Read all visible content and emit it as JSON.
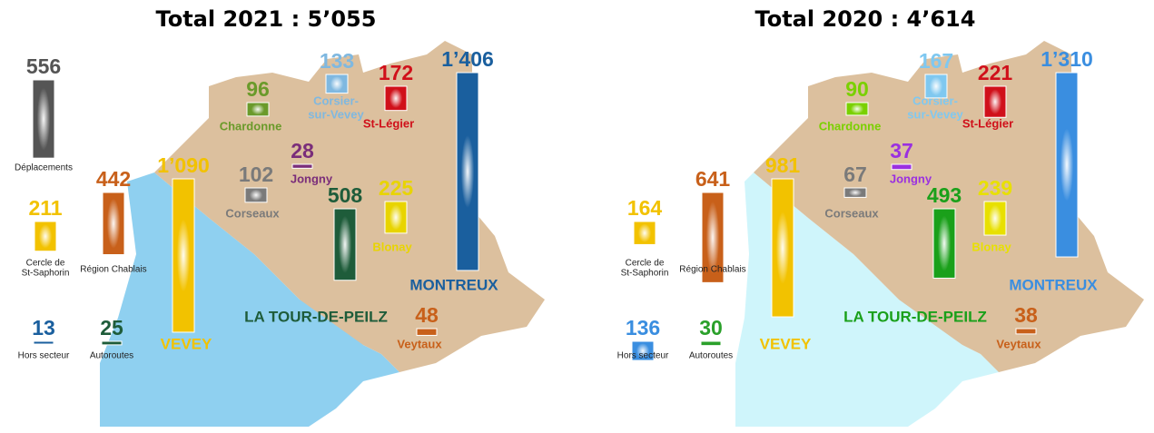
{
  "panels": [
    {
      "title": "Total 2021 : 5’055",
      "items": [
        {
          "name": "Déplacements",
          "value": 556,
          "value_label": "556",
          "color": "#555555"
        },
        {
          "name": [
            "Cercle de",
            "St-Saphorin"
          ],
          "value": 211,
          "value_label": "211",
          "color": "#f2c200"
        },
        {
          "name": "Région Chablais",
          "value": 442,
          "value_label": "442",
          "color": "#c8601a"
        },
        {
          "name": "Hors secteur",
          "value": 13,
          "value_label": "13",
          "color": "#1a5f9e"
        },
        {
          "name": "Autoroutes",
          "value": 25,
          "value_label": "25",
          "color": "#1e5c3a"
        },
        {
          "name": "VEVEY",
          "value": 1090,
          "value_label": "1’090",
          "color": "#f2c200"
        },
        {
          "name": "Corseaux",
          "value": 102,
          "value_label": "102",
          "color": "#7a7a7a"
        },
        {
          "name": "Chardonne",
          "value": 96,
          "value_label": "96",
          "color": "#6a9a2a"
        },
        {
          "name": [
            "Corsier-",
            "sur-Vevey"
          ],
          "value": 133,
          "value_label": "133",
          "color": "#7fb8e0"
        },
        {
          "name": "Jongny",
          "value": 28,
          "value_label": "28",
          "color": "#7a2d7a"
        },
        {
          "name": "St-Légier",
          "value": 172,
          "value_label": "172",
          "color": "#d0101a"
        },
        {
          "name": "Blonay",
          "value": 225,
          "value_label": "225",
          "color": "#e8d400"
        },
        {
          "name": "LA TOUR-DE-PEILZ",
          "value": 508,
          "value_label": "508",
          "color": "#1e5c3a"
        },
        {
          "name": "MONTREUX",
          "value": 1406,
          "value_label": "1’406",
          "color": "#1a5f9e"
        },
        {
          "name": "Veytaux",
          "value": 48,
          "value_label": "48",
          "color": "#c8601a"
        }
      ]
    },
    {
      "title": "Total 2020 : 4’614",
      "items": [
        {
          "name": [
            "Cercle de",
            "St-Saphorin"
          ],
          "value": 164,
          "value_label": "164",
          "color": "#f2c200"
        },
        {
          "name": "Région Chablais",
          "value": 641,
          "value_label": "641",
          "color": "#c8601a"
        },
        {
          "name": "Hors secteur",
          "value": 136,
          "value_label": "136",
          "color": "#3a8ee0"
        },
        {
          "name": "Autoroutes",
          "value": 30,
          "value_label": "30",
          "color": "#2aa02a"
        },
        {
          "name": "VEVEY",
          "value": 981,
          "value_label": "981",
          "color": "#f2c200"
        },
        {
          "name": "Corseaux",
          "value": 67,
          "value_label": "67",
          "color": "#7a7a7a"
        },
        {
          "name": "Chardonne",
          "value": 90,
          "value_label": "90",
          "color": "#7ad000"
        },
        {
          "name": [
            "Corsier-",
            "sur-Vevey"
          ],
          "value": 167,
          "value_label": "167",
          "color": "#7fc8f0"
        },
        {
          "name": "Jongny",
          "value": 37,
          "value_label": "37",
          "color": "#9a30e0"
        },
        {
          "name": "St-Légier",
          "value": 221,
          "value_label": "221",
          "color": "#d0101a"
        },
        {
          "name": "Blonay",
          "value": 239,
          "value_label": "239",
          "color": "#e8e000"
        },
        {
          "name": "LA TOUR-DE-PEILZ",
          "value": 493,
          "value_label": "493",
          "color": "#1aa01a"
        },
        {
          "name": "MONTREUX",
          "value": 1310,
          "value_label": "1’310",
          "color": "#3a8ee0"
        },
        {
          "name": "Veytaux",
          "value": 38,
          "value_label": "38",
          "color": "#c8601a"
        }
      ]
    }
  ]
}
